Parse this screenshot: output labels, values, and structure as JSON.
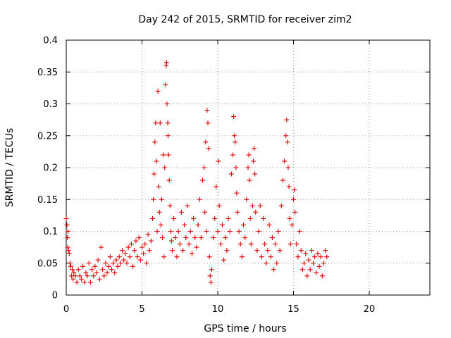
{
  "chart_data": {
    "type": "scatter",
    "title": "Day 242 of 2015, SRMTID for receiver zim2",
    "xlabel": "GPS time / hours",
    "ylabel": "SRMTID / TECUs",
    "xlim": [
      0,
      24
    ],
    "ylim": [
      0,
      0.4
    ],
    "xticks": [
      0,
      5,
      10,
      15,
      20
    ],
    "yticks": [
      0,
      0.05,
      0.1,
      0.15,
      0.2,
      0.25,
      0.3,
      0.35,
      0.4
    ],
    "xtick_labels": [
      "0",
      "5",
      "10",
      "15",
      "20"
    ],
    "ytick_labels": [
      "0",
      "0.05",
      "0.1",
      "0.15",
      "0.2",
      "0.25",
      "0.3",
      "0.35",
      "0.4"
    ],
    "grid": true,
    "marker": "+",
    "marker_color": "#e00000",
    "series": [
      {
        "name": "SRMTID",
        "points": [
          [
            0.0,
            0.12
          ],
          [
            0.05,
            0.11
          ],
          [
            0.08,
            0.09
          ],
          [
            0.1,
            0.075
          ],
          [
            0.12,
            0.1
          ],
          [
            0.15,
            0.07
          ],
          [
            0.2,
            0.065
          ],
          [
            0.25,
            0.05
          ],
          [
            0.3,
            0.045
          ],
          [
            0.35,
            0.03
          ],
          [
            0.4,
            0.04
          ],
          [
            0.45,
            0.025
          ],
          [
            0.5,
            0.035
          ],
          [
            0.6,
            0.03
          ],
          [
            0.7,
            0.02
          ],
          [
            0.8,
            0.04
          ],
          [
            0.9,
            0.03
          ],
          [
            1.0,
            0.025
          ],
          [
            1.1,
            0.045
          ],
          [
            1.2,
            0.02
          ],
          [
            1.3,
            0.035
          ],
          [
            1.4,
            0.03
          ],
          [
            1.5,
            0.05
          ],
          [
            1.6,
            0.02
          ],
          [
            1.7,
            0.04
          ],
          [
            1.8,
            0.03
          ],
          [
            1.9,
            0.045
          ],
          [
            2.0,
            0.035
          ],
          [
            2.1,
            0.055
          ],
          [
            2.2,
            0.025
          ],
          [
            2.3,
            0.075
          ],
          [
            2.4,
            0.04
          ],
          [
            2.5,
            0.03
          ],
          [
            2.6,
            0.05
          ],
          [
            2.7,
            0.035
          ],
          [
            2.8,
            0.045
          ],
          [
            2.9,
            0.06
          ],
          [
            3.0,
            0.04
          ],
          [
            3.1,
            0.05
          ],
          [
            3.2,
            0.035
          ],
          [
            3.3,
            0.055
          ],
          [
            3.4,
            0.045
          ],
          [
            3.5,
            0.06
          ],
          [
            3.6,
            0.05
          ],
          [
            3.7,
            0.07
          ],
          [
            3.8,
            0.055
          ],
          [
            3.9,
            0.065
          ],
          [
            4.0,
            0.05
          ],
          [
            4.1,
            0.075
          ],
          [
            4.2,
            0.06
          ],
          [
            4.3,
            0.08
          ],
          [
            4.4,
            0.045
          ],
          [
            4.5,
            0.07
          ],
          [
            4.6,
            0.085
          ],
          [
            4.7,
            0.06
          ],
          [
            4.8,
            0.09
          ],
          [
            4.9,
            0.055
          ],
          [
            5.0,
            0.075
          ],
          [
            5.1,
            0.065
          ],
          [
            5.2,
            0.08
          ],
          [
            5.3,
            0.05
          ],
          [
            5.4,
            0.095
          ],
          [
            5.5,
            0.07
          ],
          [
            5.6,
            0.085
          ],
          [
            5.7,
            0.12
          ],
          [
            5.75,
            0.15
          ],
          [
            5.8,
            0.19
          ],
          [
            5.85,
            0.24
          ],
          [
            5.9,
            0.27
          ],
          [
            5.95,
            0.21
          ],
          [
            6.0,
            0.1
          ],
          [
            6.05,
            0.32
          ],
          [
            6.1,
            0.17
          ],
          [
            6.15,
            0.13
          ],
          [
            6.2,
            0.27
          ],
          [
            6.25,
            0.11
          ],
          [
            6.3,
            0.15
          ],
          [
            6.35,
            0.09
          ],
          [
            6.4,
            0.22
          ],
          [
            6.45,
            0.06
          ],
          [
            6.5,
            0.2
          ],
          [
            6.55,
            0.33
          ],
          [
            6.6,
            0.36
          ],
          [
            6.62,
            0.365
          ],
          [
            6.65,
            0.3
          ],
          [
            6.7,
            0.27
          ],
          [
            6.72,
            0.25
          ],
          [
            6.75,
            0.22
          ],
          [
            6.8,
            0.18
          ],
          [
            6.85,
            0.14
          ],
          [
            6.9,
            0.1
          ],
          [
            6.95,
            0.085
          ],
          [
            7.0,
            0.07
          ],
          [
            7.1,
            0.12
          ],
          [
            7.2,
            0.09
          ],
          [
            7.3,
            0.06
          ],
          [
            7.4,
            0.1
          ],
          [
            7.5,
            0.08
          ],
          [
            7.6,
            0.13
          ],
          [
            7.7,
            0.07
          ],
          [
            7.8,
            0.11
          ],
          [
            7.9,
            0.09
          ],
          [
            8.0,
            0.14
          ],
          [
            8.1,
            0.08
          ],
          [
            8.2,
            0.1
          ],
          [
            8.3,
            0.065
          ],
          [
            8.4,
            0.12
          ],
          [
            8.5,
            0.09
          ],
          [
            8.6,
            0.075
          ],
          [
            8.7,
            0.11
          ],
          [
            8.8,
            0.15
          ],
          [
            8.9,
            0.09
          ],
          [
            9.0,
            0.18
          ],
          [
            9.1,
            0.2
          ],
          [
            9.15,
            0.13
          ],
          [
            9.2,
            0.24
          ],
          [
            9.25,
            0.1
          ],
          [
            9.3,
            0.29
          ],
          [
            9.35,
            0.27
          ],
          [
            9.4,
            0.23
          ],
          [
            9.45,
            0.06
          ],
          [
            9.5,
            0.03
          ],
          [
            9.55,
            0.02
          ],
          [
            9.6,
            0.04
          ],
          [
            9.7,
            0.09
          ],
          [
            9.8,
            0.12
          ],
          [
            9.9,
            0.17
          ],
          [
            10.0,
            0.1
          ],
          [
            10.05,
            0.21
          ],
          [
            10.1,
            0.14
          ],
          [
            10.2,
            0.08
          ],
          [
            10.3,
            0.11
          ],
          [
            10.4,
            0.055
          ],
          [
            10.5,
            0.09
          ],
          [
            10.6,
            0.07
          ],
          [
            10.7,
            0.12
          ],
          [
            10.8,
            0.1
          ],
          [
            10.9,
            0.19
          ],
          [
            11.0,
            0.22
          ],
          [
            11.05,
            0.28
          ],
          [
            11.1,
            0.25
          ],
          [
            11.15,
            0.24
          ],
          [
            11.2,
            0.2
          ],
          [
            11.25,
            0.16
          ],
          [
            11.3,
            0.13
          ],
          [
            11.4,
            0.1
          ],
          [
            11.5,
            0.08
          ],
          [
            11.6,
            0.06
          ],
          [
            11.7,
            0.11
          ],
          [
            11.8,
            0.09
          ],
          [
            11.9,
            0.15
          ],
          [
            12.0,
            0.2
          ],
          [
            12.05,
            0.22
          ],
          [
            12.1,
            0.18
          ],
          [
            12.15,
            0.12
          ],
          [
            12.2,
            0.08
          ],
          [
            12.3,
            0.14
          ],
          [
            12.35,
            0.21
          ],
          [
            12.4,
            0.23
          ],
          [
            12.45,
            0.19
          ],
          [
            12.5,
            0.13
          ],
          [
            12.6,
            0.07
          ],
          [
            12.7,
            0.1
          ],
          [
            12.8,
            0.14
          ],
          [
            12.9,
            0.06
          ],
          [
            13.0,
            0.12
          ],
          [
            13.1,
            0.08
          ],
          [
            13.2,
            0.05
          ],
          [
            13.3,
            0.07
          ],
          [
            13.4,
            0.11
          ],
          [
            13.5,
            0.06
          ],
          [
            13.6,
            0.09
          ],
          [
            13.7,
            0.04
          ],
          [
            13.8,
            0.08
          ],
          [
            13.9,
            0.05
          ],
          [
            14.0,
            0.1
          ],
          [
            14.1,
            0.07
          ],
          [
            14.2,
            0.14
          ],
          [
            14.3,
            0.18
          ],
          [
            14.4,
            0.21
          ],
          [
            14.5,
            0.25
          ],
          [
            14.55,
            0.275
          ],
          [
            14.6,
            0.24
          ],
          [
            14.65,
            0.2
          ],
          [
            14.7,
            0.17
          ],
          [
            14.75,
            0.12
          ],
          [
            14.8,
            0.08
          ],
          [
            14.9,
            0.11
          ],
          [
            15.0,
            0.15
          ],
          [
            15.05,
            0.165
          ],
          [
            15.1,
            0.13
          ],
          [
            15.2,
            0.08
          ],
          [
            15.3,
            0.06
          ],
          [
            15.4,
            0.1
          ],
          [
            15.5,
            0.07
          ],
          [
            15.6,
            0.04
          ],
          [
            15.7,
            0.05
          ],
          [
            15.8,
            0.065
          ],
          [
            15.9,
            0.03
          ],
          [
            16.0,
            0.055
          ],
          [
            16.1,
            0.04
          ],
          [
            16.2,
            0.07
          ],
          [
            16.3,
            0.05
          ],
          [
            16.4,
            0.06
          ],
          [
            16.5,
            0.035
          ],
          [
            16.6,
            0.065
          ],
          [
            16.7,
            0.045
          ],
          [
            16.8,
            0.06
          ],
          [
            16.9,
            0.03
          ],
          [
            17.0,
            0.05
          ],
          [
            17.1,
            0.07
          ],
          [
            17.2,
            0.06
          ]
        ]
      }
    ]
  }
}
